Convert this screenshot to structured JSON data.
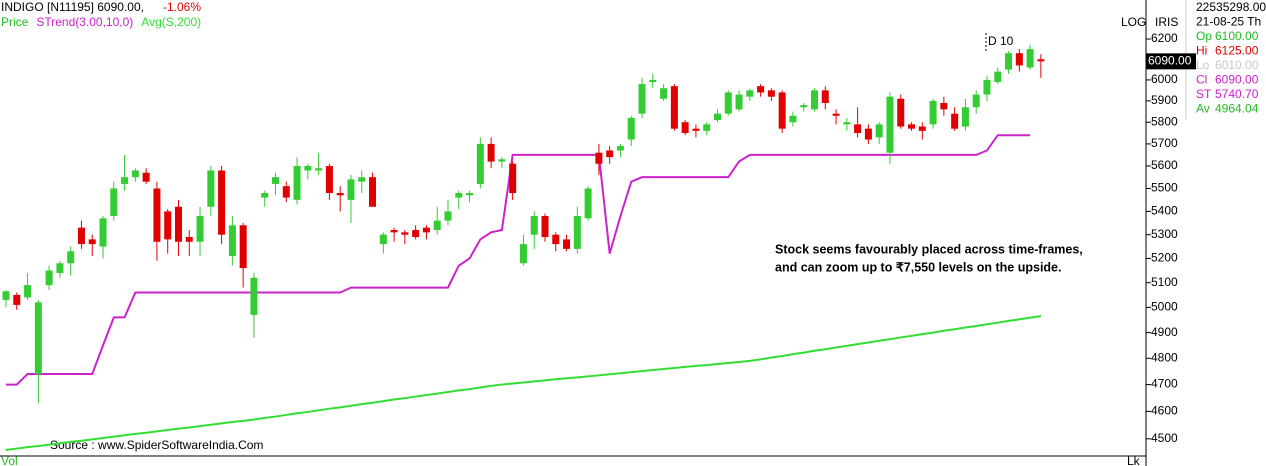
{
  "chart_data": {
    "type": "candlestick",
    "title": "INDIGO [N11195] 6090.00,",
    "change": "-1.06%",
    "log_scale": true,
    "scale_label": "LOG",
    "ylim": [
      4442,
      6255
    ],
    "yticks": [
      4500,
      4600,
      4700,
      4800,
      4900,
      5000,
      5100,
      5200,
      5300,
      5400,
      5500,
      5600,
      5700,
      5800,
      5900,
      6000,
      6100,
      6200
    ],
    "candles": {
      "name": "Price",
      "legend_color": "#22bb22",
      "up_color": "#33cc33",
      "down_color": "#e00000",
      "open": [
        5030,
        5050,
        5040,
        4740,
        5090,
        5140,
        5180,
        5330,
        5280,
        5250,
        5380,
        5520,
        5550,
        5570,
        5500,
        5400,
        5420,
        5290,
        5270,
        5420,
        5580,
        5210,
        5340,
        4970,
        5460,
        5520,
        5510,
        5450,
        5580,
        5580,
        5600,
        5480,
        5450,
        5530,
        5550,
        5260,
        5320,
        5310,
        5320,
        5330,
        5320,
        5360,
        5460,
        5470,
        5520,
        5700,
        5620,
        5610,
        5180,
        5300,
        5380,
        5300,
        5280,
        5240,
        5370,
        5660,
        5670,
        5670,
        5720,
        5840,
        5990,
        5910,
        5970,
        5800,
        5770,
        5760,
        5810,
        5840,
        5860,
        5920,
        5970,
        5950,
        5940,
        5800,
        5870,
        5860,
        5950,
        5840,
        5790,
        5790,
        5770,
        5730,
        5660,
        5910,
        5790,
        5780,
        5790,
        5890,
        5840,
        5780,
        5870,
        5930,
        5990,
        6050,
        6130,
        6060,
        6100
      ],
      "high": [
        5070,
        5060,
        5140,
        5030,
        5170,
        5190,
        5250,
        5360,
        5300,
        5380,
        5530,
        5650,
        5590,
        5590,
        5530,
        5410,
        5450,
        5320,
        5420,
        5600,
        5600,
        5380,
        5350,
        5140,
        5490,
        5570,
        5530,
        5640,
        5610,
        5660,
        5610,
        5510,
        5560,
        5580,
        5570,
        5310,
        5330,
        5320,
        5340,
        5340,
        5420,
        5450,
        5490,
        5490,
        5730,
        5730,
        5640,
        5620,
        5300,
        5400,
        5390,
        5310,
        5300,
        5420,
        5510,
        5700,
        5690,
        5700,
        5830,
        6010,
        6030,
        5980,
        5980,
        5810,
        5790,
        5800,
        5860,
        5950,
        5950,
        5960,
        5980,
        5960,
        5950,
        5850,
        5890,
        5960,
        5970,
        5860,
        5820,
        5870,
        5790,
        5800,
        5940,
        5930,
        5800,
        5800,
        5910,
        5920,
        5870,
        5910,
        5950,
        6020,
        6060,
        6140,
        6150,
        6170,
        6125
      ],
      "low": [
        5000,
        4990,
        5030,
        4630,
        5070,
        5120,
        5130,
        5240,
        5210,
        5200,
        5360,
        5490,
        5530,
        5520,
        5190,
        5220,
        5210,
        5210,
        5210,
        5380,
        5260,
        5170,
        5080,
        4880,
        5420,
        5470,
        5440,
        5430,
        5540,
        5560,
        5450,
        5400,
        5350,
        5480,
        5420,
        5220,
        5270,
        5260,
        5280,
        5280,
        5300,
        5340,
        5410,
        5440,
        5500,
        5590,
        5590,
        5450,
        5170,
        5240,
        5270,
        5230,
        5230,
        5220,
        5360,
        5560,
        5610,
        5640,
        5690,
        5820,
        5960,
        5900,
        5760,
        5740,
        5730,
        5740,
        5800,
        5830,
        5850,
        5900,
        5920,
        5900,
        5750,
        5780,
        5850,
        5850,
        5860,
        5790,
        5760,
        5730,
        5700,
        5700,
        5610,
        5770,
        5760,
        5720,
        5770,
        5830,
        5760,
        5760,
        5840,
        5900,
        5980,
        6030,
        6040,
        6050,
        6010
      ],
      "close": [
        5065,
        5010,
        5090,
        5020,
        5150,
        5180,
        5230,
        5260,
        5260,
        5370,
        5500,
        5550,
        5580,
        5530,
        5270,
        5280,
        5270,
        5270,
        5380,
        5580,
        5300,
        5340,
        5160,
        5120,
        5480,
        5550,
        5460,
        5600,
        5600,
        5590,
        5480,
        5470,
        5540,
        5550,
        5420,
        5300,
        5310,
        5300,
        5290,
        5310,
        5360,
        5400,
        5480,
        5480,
        5700,
        5620,
        5630,
        5480,
        5260,
        5380,
        5290,
        5260,
        5240,
        5380,
        5500,
        5610,
        5640,
        5690,
        5820,
        5980,
        6000,
        5960,
        5770,
        5750,
        5760,
        5790,
        5840,
        5940,
        5930,
        5950,
        5940,
        5920,
        5770,
        5830,
        5880,
        5950,
        5890,
        5830,
        5800,
        5750,
        5720,
        5790,
        5920,
        5780,
        5770,
        5760,
        5900,
        5860,
        5770,
        5870,
        5930,
        6000,
        6040,
        6130,
        6070,
        6150,
        6090
      ]
    },
    "series": [
      {
        "name": "STrend(3.00,10,0)",
        "color": "#cc22cc",
        "values": [
          4700,
          4700,
          4740,
          4740,
          4740,
          4740,
          4740,
          4740,
          4740,
          4850,
          4960,
          4960,
          5060,
          5060,
          5060,
          5060,
          5060,
          5060,
          5060,
          5060,
          5060,
          5060,
          5060,
          5060,
          5060,
          5060,
          5060,
          5060,
          5060,
          5060,
          5060,
          5060,
          5080,
          5080,
          5080,
          5080,
          5080,
          5080,
          5080,
          5080,
          5080,
          5080,
          5170,
          5200,
          5280,
          5310,
          5320,
          5650,
          5650,
          5650,
          5650,
          5650,
          5650,
          5650,
          5650,
          5650,
          5220,
          5380,
          5530,
          5550,
          5550,
          5550,
          5550,
          5550,
          5550,
          5550,
          5550,
          5550,
          5620,
          5650,
          5650,
          5650,
          5650,
          5650,
          5650,
          5650,
          5650,
          5650,
          5650,
          5650,
          5650,
          5650,
          5650,
          5650,
          5650,
          5650,
          5650,
          5650,
          5650,
          5650,
          5650,
          5670,
          5740,
          5740,
          5740,
          5740
        ]
      },
      {
        "name": "Avg(S,200)",
        "color": "#33dd33",
        "values": [
          4460,
          4465,
          4470,
          4474,
          4479,
          4484,
          4489,
          4493,
          4498,
          4503,
          4508,
          4513,
          4518,
          4522,
          4527,
          4532,
          4537,
          4541,
          4546,
          4551,
          4556,
          4561,
          4565,
          4570,
          4576,
          4581,
          4587,
          4593,
          4598,
          4604,
          4610,
          4615,
          4621,
          4627,
          4632,
          4638,
          4644,
          4649,
          4655,
          4661,
          4666,
          4672,
          4678,
          4683,
          4689,
          4695,
          4700,
          4704,
          4708,
          4712,
          4716,
          4720,
          4724,
          4727,
          4731,
          4735,
          4739,
          4743,
          4747,
          4751,
          4755,
          4759,
          4763,
          4767,
          4771,
          4774,
          4778,
          4782,
          4786,
          4790,
          4796,
          4803,
          4809,
          4816,
          4822,
          4829,
          4835,
          4842,
          4848,
          4855,
          4861,
          4868,
          4874,
          4881,
          4887,
          4894,
          4900,
          4907,
          4913,
          4920,
          4926,
          4933,
          4939,
          4946,
          4952,
          4959,
          4965
        ]
      }
    ],
    "last_price": {
      "value": 6090,
      "label": "6090.00"
    },
    "event_label": "D 10",
    "annotation": [
      "Stock seems favourably placed across time-frames,",
      "and can zoom up to ₹7,550 levels on the upside."
    ],
    "source": "Source : www.SpiderSoftwareIndia.Com",
    "volume_label": "Vol"
  },
  "panel": {
    "title": "IRIS",
    "link": "Lk",
    "rows": [
      {
        "text": "22535298.00",
        "color": "#000000"
      },
      {
        "text": "21-08-25 Th",
        "color": "#000000"
      },
      {
        "label": "Op",
        "value": "6100.00",
        "color": "#22bb22"
      },
      {
        "label": "Hi",
        "value": "6125.00",
        "color": "#e00000"
      },
      {
        "label": "Lo",
        "value": "6010.00",
        "color": "#c8c8c8"
      },
      {
        "label": "Cl",
        "value": "6090.00",
        "color": "#cc22cc"
      },
      {
        "label": "ST",
        "value": "5740.70",
        "color": "#cc22cc"
      },
      {
        "label": "Av",
        "value": "4964.04",
        "color": "#22bb22"
      }
    ]
  }
}
